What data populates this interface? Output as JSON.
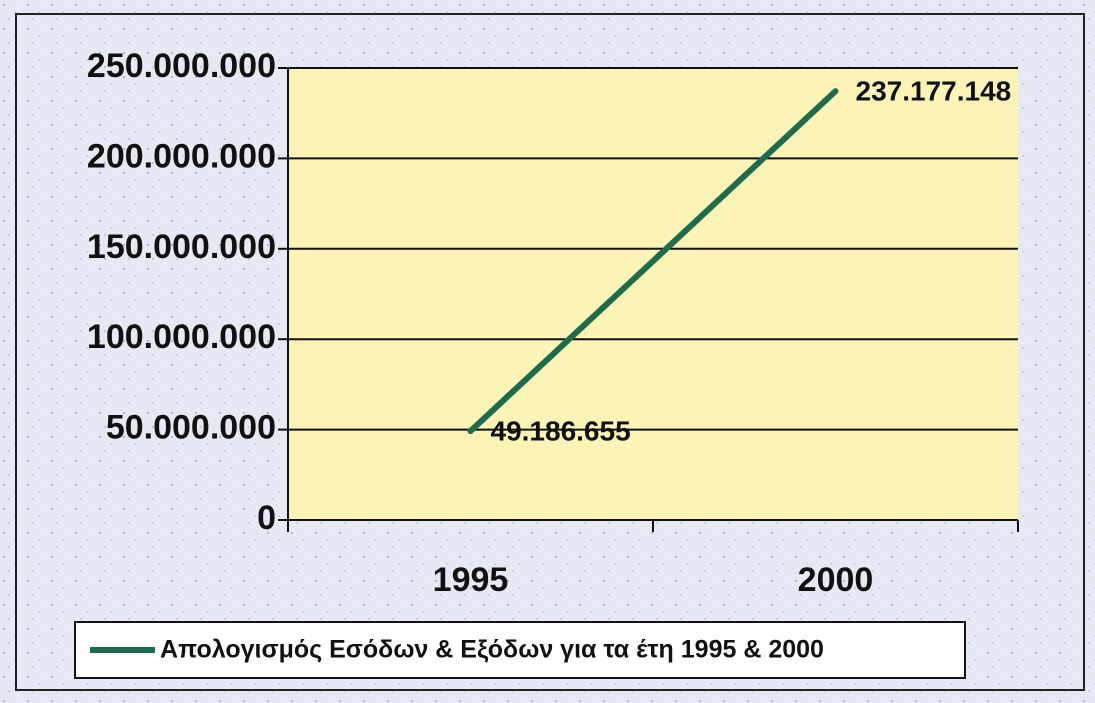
{
  "chart_data": {
    "type": "line",
    "categories": [
      "1995",
      "2000"
    ],
    "series": [
      {
        "name": "Απολογισμός Εσόδων & Εξόδων για τα έτη 1995 & 2000",
        "color": "#1f6b4e",
        "values": [
          49186655,
          237177148
        ],
        "value_labels": [
          "49.186.655",
          "237.177.148"
        ]
      }
    ],
    "ylim": [
      0,
      250000000
    ],
    "yticks": [
      0,
      {
        "value": 50000000,
        "label": "50.000.000"
      },
      {
        "value": 100000000,
        "label": "100.000.000"
      },
      {
        "value": 150000000,
        "label": "150.000.000"
      },
      {
        "value": 200000000,
        "label": "200.000.000"
      },
      {
        "value": 250000000,
        "label": "250.000.000"
      }
    ],
    "grid": true,
    "legend": "bottom"
  }
}
